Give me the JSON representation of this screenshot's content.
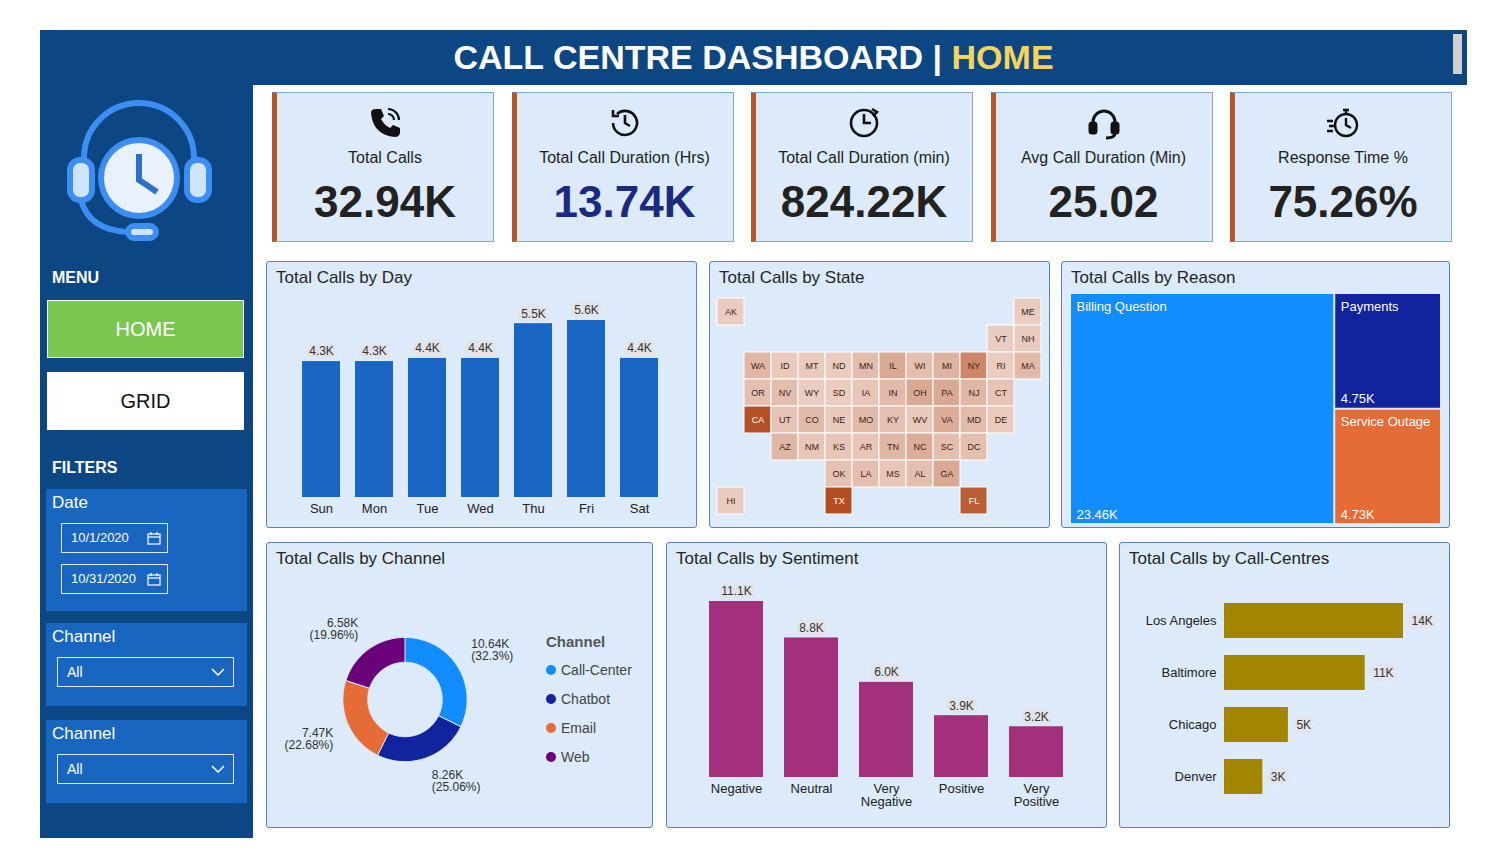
{
  "header": {
    "title": "CALL CENTRE DASHBOARD",
    "separator": "|",
    "page": "HOME"
  },
  "menu": {
    "title": "MENU",
    "items": [
      "HOME",
      "GRID"
    ],
    "active": "HOME"
  },
  "filters": {
    "title": "FILTERS",
    "date": {
      "label": "Date",
      "start": "10/1/2020",
      "end": "10/31/2020"
    },
    "dropdowns": [
      {
        "label": "Channel",
        "value": "All"
      },
      {
        "label": "Channel",
        "value": "All"
      }
    ]
  },
  "kpis": [
    {
      "label": "Total Calls",
      "value": "32.94K",
      "color": "#222222"
    },
    {
      "label": "Total Call Duration (Hrs)",
      "value": "13.74K",
      "color": "#1a2a80"
    },
    {
      "label": "Total Call Duration (min)",
      "value": "824.22K",
      "color": "#222222"
    },
    {
      "label": "Avg Call Duration (Min)",
      "value": "25.02",
      "color": "#222222"
    },
    {
      "label": "Response Time %",
      "value": "75.26%",
      "color": "#222222"
    }
  ],
  "chart_data": [
    {
      "type": "bar",
      "title": "Total Calls by Day",
      "categories": [
        "Sun",
        "Mon",
        "Tue",
        "Wed",
        "Thu",
        "Fri",
        "Sat"
      ],
      "values": [
        4300,
        4300,
        4400,
        4400,
        5500,
        5600,
        4400
      ],
      "value_labels": [
        "4.3K",
        "4.3K",
        "4.4K",
        "4.4K",
        "5.5K",
        "5.6K",
        "4.4K"
      ],
      "color": "#1a66c5",
      "data_labels": true,
      "tick_labels": "x"
    },
    {
      "type": "map",
      "title": "Total Calls by State",
      "categories": [
        "AK",
        "ME",
        "VT",
        "NH",
        "WA",
        "ID",
        "MT",
        "ND",
        "MN",
        "IL",
        "WI",
        "MI",
        "NY",
        "RI",
        "MA",
        "OR",
        "NV",
        "WY",
        "SD",
        "IA",
        "IN",
        "OH",
        "PA",
        "NJ",
        "CT",
        "CA",
        "UT",
        "CO",
        "NE",
        "MO",
        "KY",
        "WV",
        "VA",
        "MD",
        "DE",
        "AZ",
        "NM",
        "KS",
        "AR",
        "TN",
        "NC",
        "SC",
        "DC",
        "OK",
        "LA",
        "MS",
        "AL",
        "GA",
        "HI",
        "TX",
        "FL"
      ],
      "values": [
        60,
        80,
        30,
        70,
        700,
        120,
        90,
        60,
        500,
        1100,
        450,
        800,
        2100,
        60,
        600,
        400,
        500,
        40,
        50,
        250,
        600,
        1100,
        1100,
        700,
        300,
        3700,
        300,
        600,
        150,
        600,
        400,
        150,
        1000,
        550,
        100,
        700,
        200,
        250,
        250,
        700,
        1000,
        450,
        400,
        350,
        450,
        250,
        450,
        1100,
        70,
        3800,
        3300
      ],
      "color": "#b34d22"
    },
    {
      "type": "treemap",
      "title": "Total Calls by Reason",
      "categories": [
        "Billing Question",
        "Payments",
        "Service Outage"
      ],
      "values": [
        23460,
        4750,
        4730
      ],
      "value_labels": [
        "23.46K",
        "4.75K",
        "4.73K"
      ],
      "colors": [
        "#118dff",
        "#12239e",
        "#e66c37"
      ],
      "data_labels": true
    },
    {
      "type": "donut",
      "title": "Total Calls by Channel",
      "categories": [
        "Call-Center",
        "Chatbot",
        "Email",
        "Web"
      ],
      "values": [
        10640,
        8260,
        7470,
        6580
      ],
      "value_labels": [
        "10.64K\n(32.3%)",
        "8.26K\n(25.06%)",
        "7.47K\n(22.68%)",
        "6.58K\n(19.96%)"
      ],
      "colors": [
        "#118dff",
        "#12239e",
        "#e66c37",
        "#6b007b"
      ],
      "legend": "right",
      "legend_title": "Channel",
      "data_labels": true
    },
    {
      "type": "bar",
      "title": "Total Calls by Sentiment",
      "categories": [
        "Negative",
        "Neutral",
        "Very Negative",
        "Positive",
        "Very Positive"
      ],
      "values": [
        11100,
        8800,
        6000,
        3900,
        3200
      ],
      "value_labels": [
        "11.1K",
        "8.8K",
        "6.0K",
        "3.9K",
        "3.2K"
      ],
      "color": "#a3307a",
      "data_labels": true,
      "tick_labels": "x"
    },
    {
      "type": "bar",
      "title": "Total Calls by Call-Centres",
      "orientation": "horizontal",
      "categories": [
        "Los Angeles",
        "Baltimore",
        "Chicago",
        "Denver"
      ],
      "values": [
        14000,
        11000,
        5000,
        3000
      ],
      "value_labels": [
        "14K",
        "11K",
        "5K",
        "3K"
      ],
      "color": "#a38600",
      "data_labels": true,
      "tick_labels": "y"
    }
  ]
}
